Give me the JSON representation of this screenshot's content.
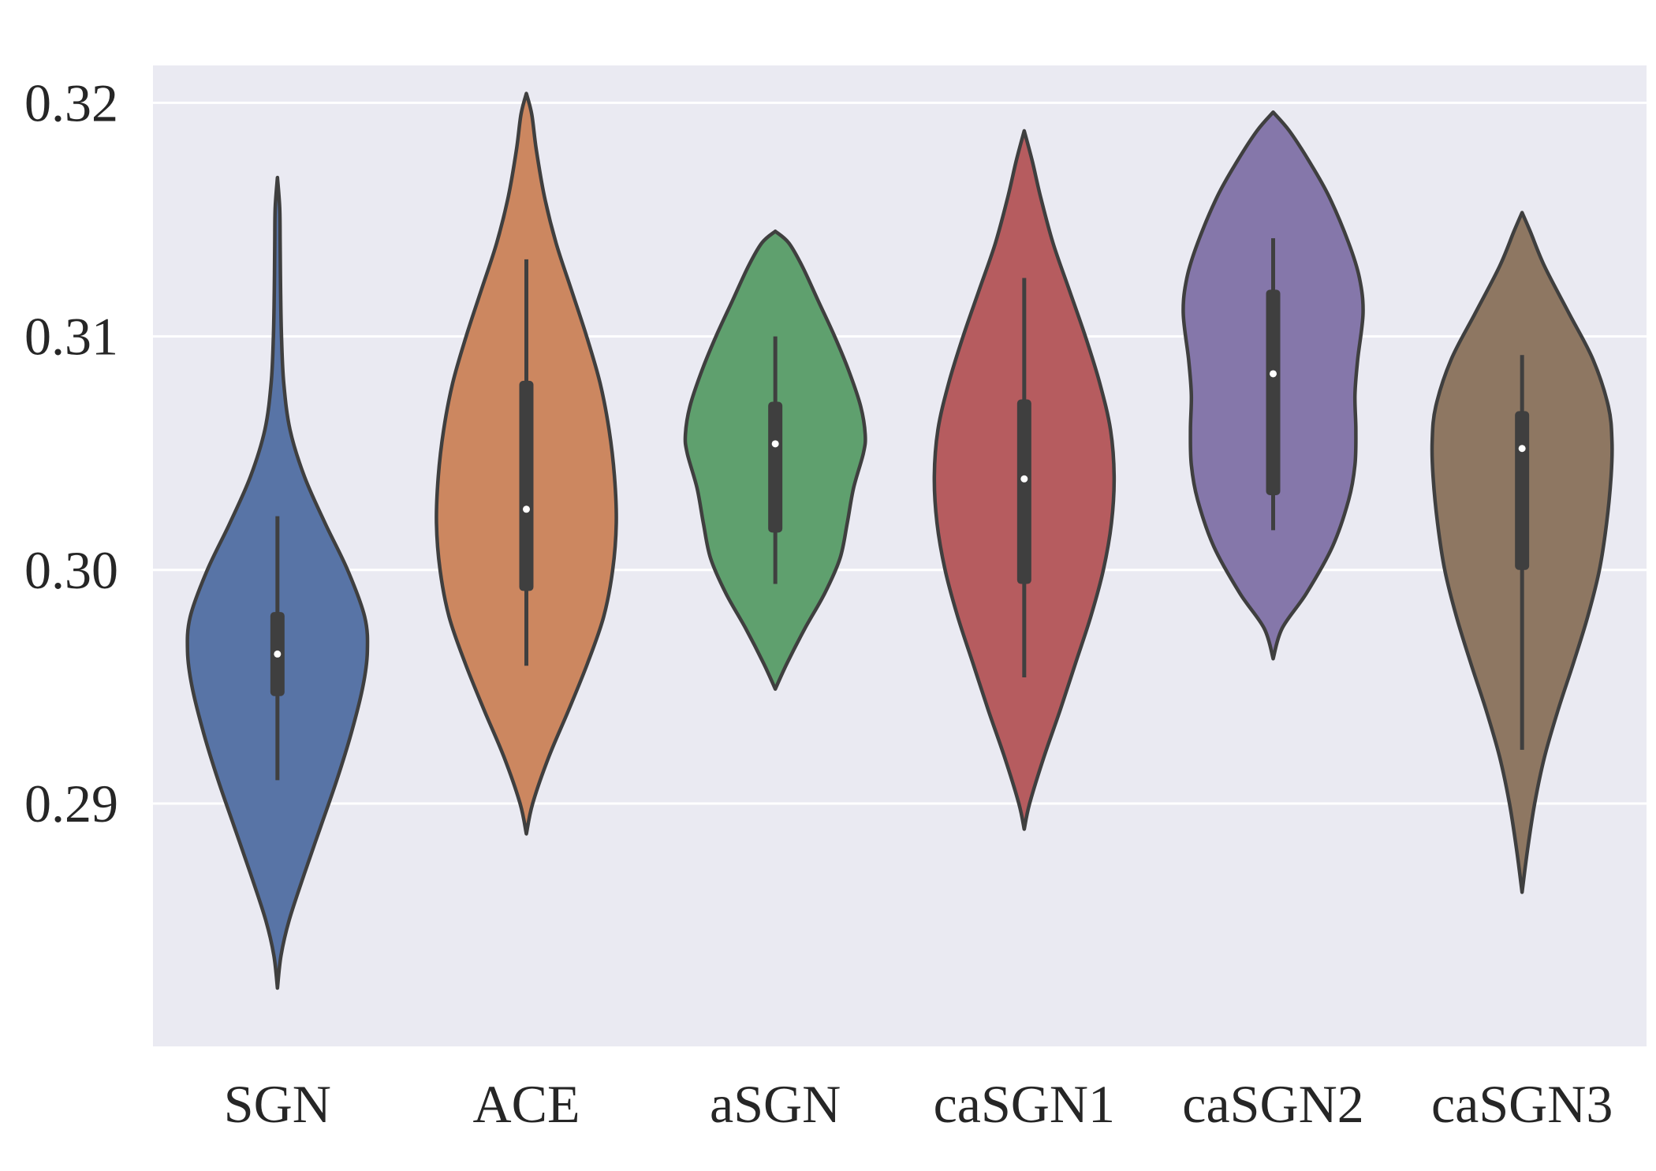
{
  "chart_data": {
    "type": "violin",
    "title": "",
    "xlabel": "",
    "ylabel": "",
    "categories": [
      "SGN",
      "ACE",
      "aSGN",
      "caSGN1",
      "caSGN2",
      "caSGN3"
    ],
    "ylim": [
      0.2796,
      0.3216
    ],
    "yticks": [
      0.29,
      0.3,
      0.31,
      0.32
    ],
    "ytick_labels": [
      "0.29",
      "0.30",
      "0.31",
      "0.32"
    ],
    "grid": true,
    "background_color": "#eaeaf2",
    "outline_color": "#3f3f3f",
    "colors": [
      "#5874a6",
      "#cc8760",
      "#5fa06e",
      "#b65c5f",
      "#8577aa",
      "#8e7762"
    ],
    "series": [
      {
        "name": "SGN",
        "median": 0.2964,
        "q1": 0.2946,
        "q3": 0.2982,
        "whisker_low": 0.291,
        "whisker_high": 0.3023,
        "profile": [
          [
            0.2821,
            0.0
          ],
          [
            0.2835,
            0.04
          ],
          [
            0.285,
            0.13
          ],
          [
            0.287,
            0.3
          ],
          [
            0.289,
            0.48
          ],
          [
            0.291,
            0.66
          ],
          [
            0.293,
            0.82
          ],
          [
            0.295,
            0.95
          ],
          [
            0.2965,
            1.0
          ],
          [
            0.298,
            0.97
          ],
          [
            0.3,
            0.78
          ],
          [
            0.302,
            0.53
          ],
          [
            0.304,
            0.3
          ],
          [
            0.306,
            0.14
          ],
          [
            0.308,
            0.07
          ],
          [
            0.31,
            0.045
          ],
          [
            0.312,
            0.035
          ],
          [
            0.314,
            0.03
          ],
          [
            0.3155,
            0.025
          ],
          [
            0.3168,
            0.0
          ]
        ]
      },
      {
        "name": "ACE",
        "median": 0.3026,
        "q1": 0.2991,
        "q3": 0.3081,
        "whisker_low": 0.2959,
        "whisker_high": 0.3133,
        "profile": [
          [
            0.2887,
            0.0
          ],
          [
            0.29,
            0.07
          ],
          [
            0.292,
            0.25
          ],
          [
            0.294,
            0.47
          ],
          [
            0.296,
            0.68
          ],
          [
            0.298,
            0.86
          ],
          [
            0.3,
            0.96
          ],
          [
            0.302,
            1.0
          ],
          [
            0.304,
            0.98
          ],
          [
            0.306,
            0.92
          ],
          [
            0.308,
            0.82
          ],
          [
            0.31,
            0.67
          ],
          [
            0.312,
            0.5
          ],
          [
            0.314,
            0.33
          ],
          [
            0.316,
            0.2
          ],
          [
            0.318,
            0.11
          ],
          [
            0.3195,
            0.06
          ],
          [
            0.3204,
            0.0
          ]
        ]
      },
      {
        "name": "aSGN",
        "median": 0.3054,
        "q1": 0.3016,
        "q3": 0.3072,
        "whisker_low": 0.2994,
        "whisker_high": 0.31,
        "profile": [
          [
            0.2949,
            0.0
          ],
          [
            0.296,
            0.13
          ],
          [
            0.2975,
            0.33
          ],
          [
            0.299,
            0.55
          ],
          [
            0.3005,
            0.72
          ],
          [
            0.302,
            0.8
          ],
          [
            0.3035,
            0.87
          ],
          [
            0.305,
            0.98
          ],
          [
            0.3058,
            1.0
          ],
          [
            0.307,
            0.95
          ],
          [
            0.3085,
            0.82
          ],
          [
            0.31,
            0.66
          ],
          [
            0.3115,
            0.48
          ],
          [
            0.313,
            0.3
          ],
          [
            0.314,
            0.15
          ],
          [
            0.3145,
            0.0
          ]
        ]
      },
      {
        "name": "caSGN1",
        "median": 0.3039,
        "q1": 0.2994,
        "q3": 0.3073,
        "whisker_low": 0.2954,
        "whisker_high": 0.3125,
        "profile": [
          [
            0.2889,
            0.0
          ],
          [
            0.29,
            0.06
          ],
          [
            0.292,
            0.22
          ],
          [
            0.294,
            0.4
          ],
          [
            0.296,
            0.57
          ],
          [
            0.298,
            0.74
          ],
          [
            0.3,
            0.88
          ],
          [
            0.302,
            0.97
          ],
          [
            0.304,
            1.0
          ],
          [
            0.306,
            0.96
          ],
          [
            0.308,
            0.84
          ],
          [
            0.31,
            0.68
          ],
          [
            0.312,
            0.5
          ],
          [
            0.314,
            0.32
          ],
          [
            0.316,
            0.18
          ],
          [
            0.3175,
            0.09
          ],
          [
            0.3188,
            0.0
          ]
        ]
      },
      {
        "name": "caSGN2",
        "median": 0.3084,
        "q1": 0.3032,
        "q3": 0.312,
        "whisker_low": 0.3017,
        "whisker_high": 0.3142,
        "profile": [
          [
            0.2962,
            0.0
          ],
          [
            0.2975,
            0.1
          ],
          [
            0.299,
            0.37
          ],
          [
            0.301,
            0.66
          ],
          [
            0.303,
            0.84
          ],
          [
            0.3045,
            0.91
          ],
          [
            0.306,
            0.92
          ],
          [
            0.3075,
            0.91
          ],
          [
            0.309,
            0.94
          ],
          [
            0.311,
            1.0
          ],
          [
            0.3125,
            0.96
          ],
          [
            0.314,
            0.84
          ],
          [
            0.316,
            0.62
          ],
          [
            0.3175,
            0.4
          ],
          [
            0.3188,
            0.18
          ],
          [
            0.3196,
            0.0
          ]
        ]
      },
      {
        "name": "caSGN3",
        "median": 0.3052,
        "q1": 0.3,
        "q3": 0.3068,
        "whisker_low": 0.2923,
        "whisker_high": 0.3092,
        "profile": [
          [
            0.2862,
            0.0
          ],
          [
            0.288,
            0.06
          ],
          [
            0.29,
            0.14
          ],
          [
            0.292,
            0.25
          ],
          [
            0.294,
            0.4
          ],
          [
            0.296,
            0.57
          ],
          [
            0.298,
            0.73
          ],
          [
            0.3,
            0.86
          ],
          [
            0.302,
            0.94
          ],
          [
            0.304,
            0.99
          ],
          [
            0.3055,
            1.0
          ],
          [
            0.307,
            0.96
          ],
          [
            0.309,
            0.79
          ],
          [
            0.311,
            0.52
          ],
          [
            0.313,
            0.25
          ],
          [
            0.3145,
            0.09
          ],
          [
            0.3153,
            0.0
          ]
        ]
      }
    ]
  }
}
